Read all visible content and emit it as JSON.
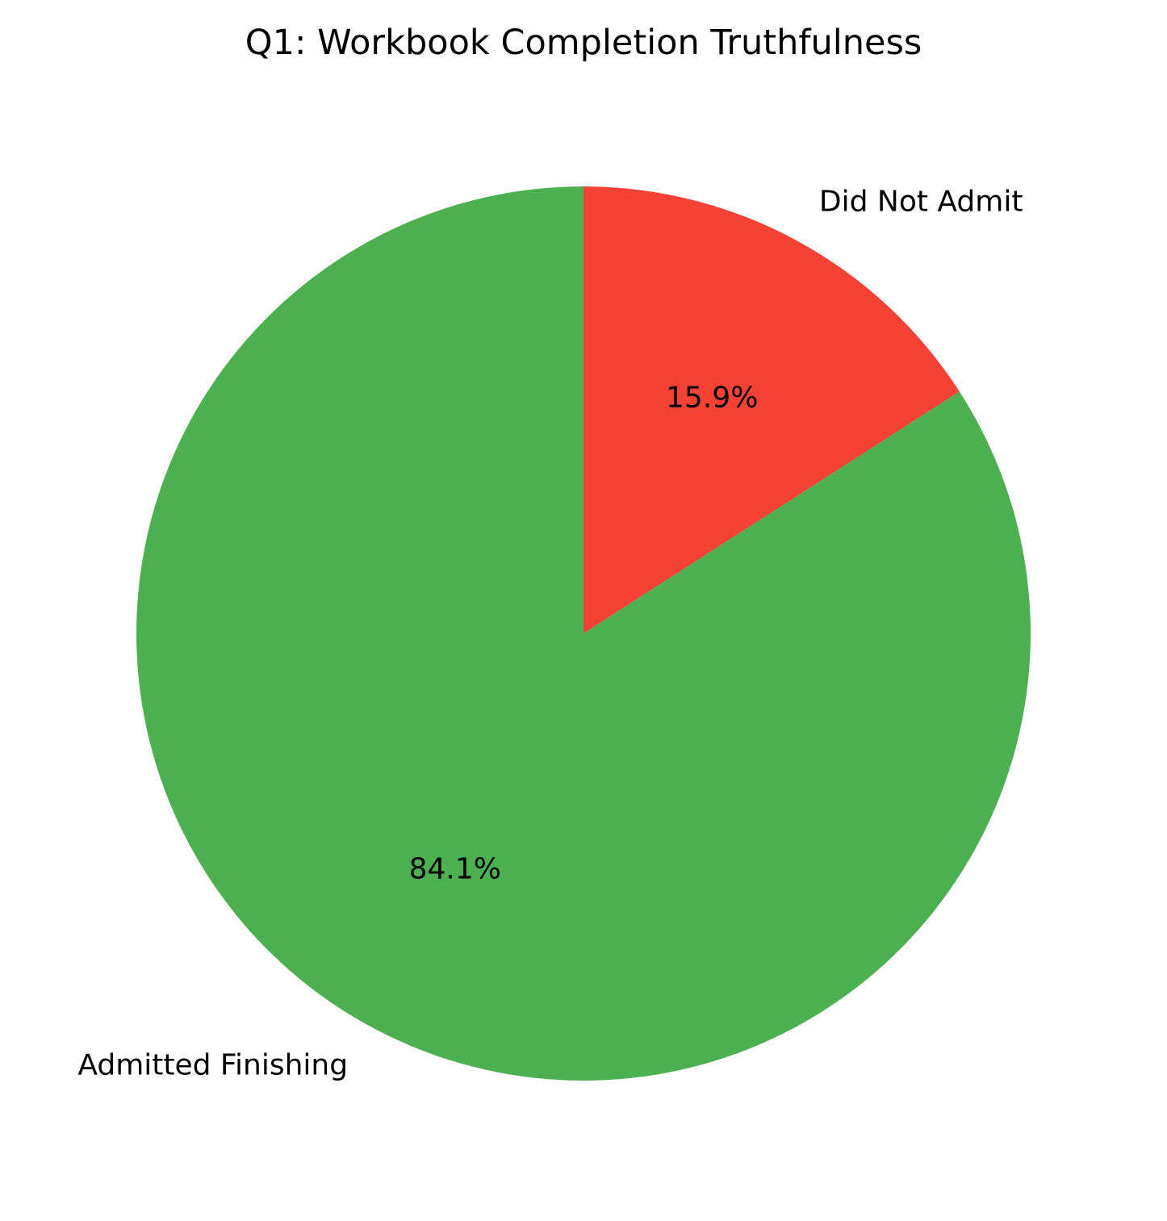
{
  "chart_data": {
    "type": "pie",
    "title": "Q1: Workbook Completion Truthfulness",
    "start_angle_deg": 90,
    "direction": "clockwise",
    "slices": [
      {
        "label": "Did Not Admit",
        "value": 15.9,
        "pct_label": "15.9%",
        "color": "#f44336"
      },
      {
        "label": "Admitted Finishing",
        "value": 84.1,
        "pct_label": "84.1%",
        "color": "#4caf50"
      }
    ]
  }
}
